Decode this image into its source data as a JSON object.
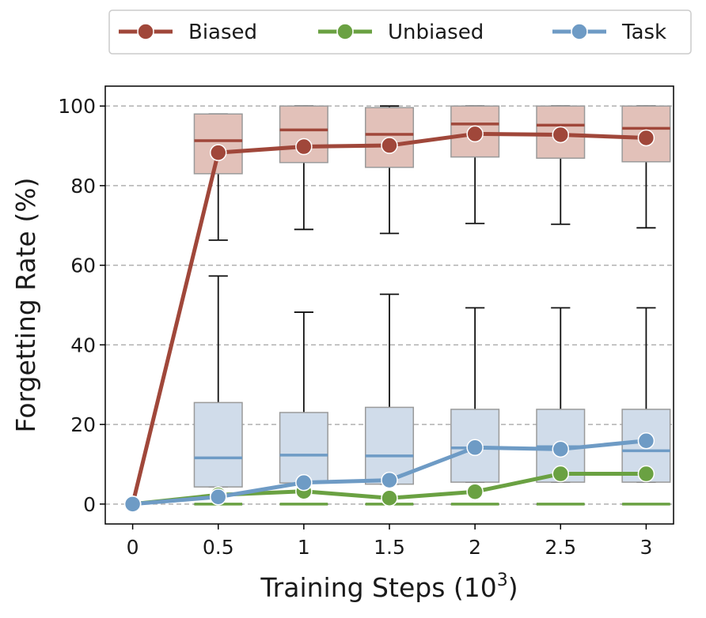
{
  "chart_data": {
    "type": "line",
    "xlabel_main": "Training Steps (10",
    "xlabel_exponent": "3",
    "xlabel_close": ")",
    "ylabel": "Forgetting Rate (%)",
    "x": [
      0,
      0.5,
      1,
      1.5,
      2,
      2.5,
      3
    ],
    "x_tick_labels": [
      "0",
      "0.5",
      "1",
      "1.5",
      "2",
      "2.5",
      "3"
    ],
    "y_ticks": [
      0,
      20,
      40,
      60,
      80,
      100
    ],
    "xlim": [
      -0.16,
      3.16
    ],
    "ylim": [
      -5,
      105
    ],
    "grid": "horizontal dashed",
    "legend_position": "top, above plot",
    "series": [
      {
        "name": "Biased",
        "color": "#a0473a",
        "box_fill": "#e2c1b9",
        "values": [
          0,
          88.3,
          89.8,
          90.1,
          93.0,
          92.8,
          92.0
        ],
        "boxes": [
          {
            "x": 0.5,
            "whisker_low": 66.3,
            "q1": 83.0,
            "median": 91.3,
            "q3": 98.0,
            "whisker_high": 98.0
          },
          {
            "x": 1,
            "whisker_low": 69.0,
            "q1": 85.8,
            "median": 94.0,
            "q3": 100.0,
            "whisker_high": 100.0
          },
          {
            "x": 1.5,
            "whisker_low": 68.0,
            "q1": 84.6,
            "median": 92.9,
            "q3": 99.6,
            "whisker_high": 100.0
          },
          {
            "x": 2,
            "whisker_low": 70.5,
            "q1": 87.2,
            "median": 95.5,
            "q3": 100.0,
            "whisker_high": 100.0
          },
          {
            "x": 2.5,
            "whisker_low": 70.3,
            "q1": 86.9,
            "median": 95.2,
            "q3": 100.0,
            "whisker_high": 100.0
          },
          {
            "x": 3,
            "whisker_low": 69.4,
            "q1": 86.0,
            "median": 94.4,
            "q3": 100.0,
            "whisker_high": 100.0
          }
        ]
      },
      {
        "name": "Unbiased",
        "color": "#6aa142",
        "box_fill": "#cfe2c0",
        "values": [
          0,
          2.3,
          3.2,
          1.5,
          3.1,
          7.6,
          7.6
        ],
        "boxes": [
          {
            "x": 0.5,
            "whisker_low": 0,
            "q1": 0,
            "median": 0,
            "q3": 0,
            "whisker_high": 0
          },
          {
            "x": 1,
            "whisker_low": 0,
            "q1": 0,
            "median": 0,
            "q3": 0,
            "whisker_high": 0
          },
          {
            "x": 1.5,
            "whisker_low": 0,
            "q1": 0,
            "median": 0,
            "q3": 0,
            "whisker_high": 0
          },
          {
            "x": 2,
            "whisker_low": 0,
            "q1": 0,
            "median": 0,
            "q3": 0,
            "whisker_high": 0
          },
          {
            "x": 2.5,
            "whisker_low": 0,
            "q1": 0,
            "median": 0,
            "q3": 0,
            "whisker_high": 0
          },
          {
            "x": 3,
            "whisker_low": 0,
            "q1": 0,
            "median": 0,
            "q3": 0,
            "whisker_high": 0
          }
        ]
      },
      {
        "name": "Task",
        "color": "#6e9bc5",
        "box_fill": "#d0dcea",
        "values": [
          0,
          1.8,
          5.4,
          6.0,
          14.2,
          13.8,
          15.9
        ],
        "boxes": [
          {
            "x": 0.5,
            "whisker_low": 4.3,
            "q1": 4.3,
            "median": 11.6,
            "q3": 25.5,
            "whisker_high": 57.3
          },
          {
            "x": 1,
            "whisker_low": 5.3,
            "q1": 5.3,
            "median": 12.3,
            "q3": 23.0,
            "whisker_high": 48.2
          },
          {
            "x": 1.5,
            "whisker_low": 5.0,
            "q1": 5.0,
            "median": 12.1,
            "q3": 24.3,
            "whisker_high": 52.7
          },
          {
            "x": 2,
            "whisker_low": 5.5,
            "q1": 5.5,
            "median": 14.1,
            "q3": 23.8,
            "whisker_high": 49.3
          },
          {
            "x": 2.5,
            "whisker_low": 5.5,
            "q1": 5.5,
            "median": 14.4,
            "q3": 23.8,
            "whisker_high": 49.3
          },
          {
            "x": 3,
            "whisker_low": 5.5,
            "q1": 5.5,
            "median": 13.4,
            "q3": 23.8,
            "whisker_high": 49.3
          }
        ]
      }
    ]
  }
}
